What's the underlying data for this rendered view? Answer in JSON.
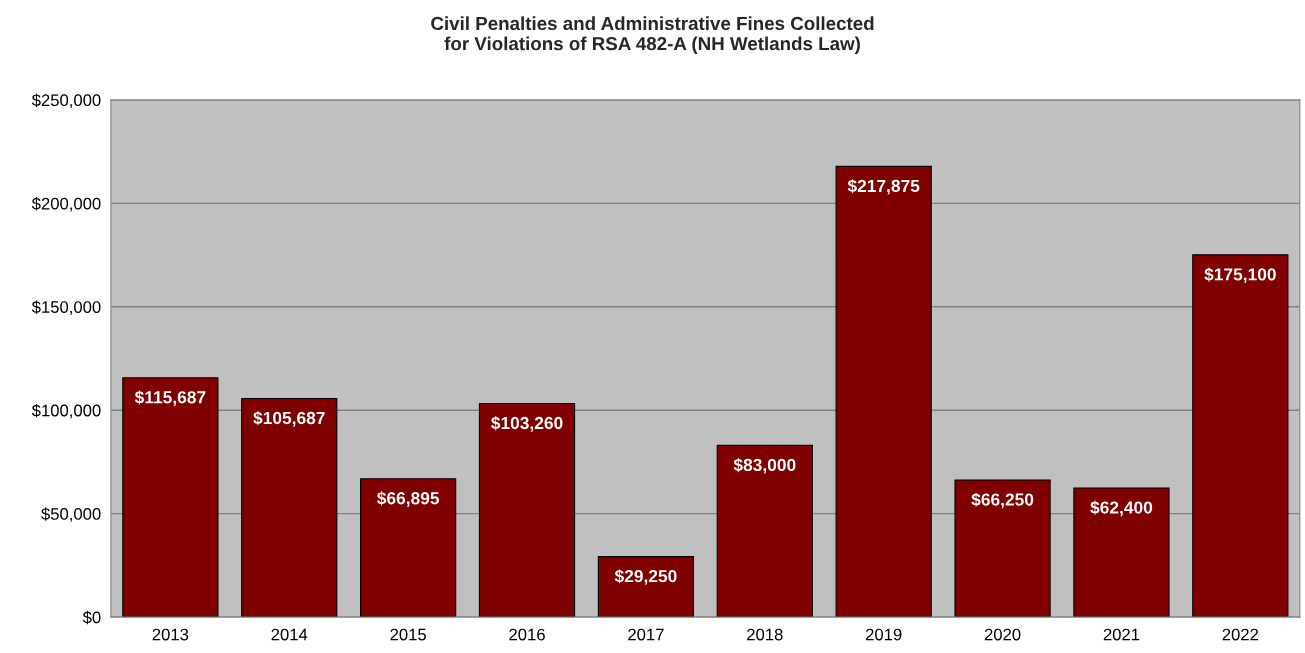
{
  "chart_data": {
    "type": "bar",
    "title": "Civil Penalties and Administrative Fines Collected\nfor Violations of RSA 482-A (NH Wetlands Law)",
    "categories": [
      "2013",
      "2014",
      "2015",
      "2016",
      "2017",
      "2018",
      "2019",
      "2020",
      "2021",
      "2022"
    ],
    "values": [
      115687,
      105687,
      66895,
      103260,
      29250,
      83000,
      217875,
      66250,
      62400,
      175100
    ],
    "value_labels": [
      "$115,687",
      "$105,687",
      "$66,895",
      "$103,260",
      "$29,250",
      "$83,000",
      "$217,875",
      "$66,250",
      "$62,400",
      "$175,100"
    ],
    "color": "#800000",
    "ylim": [
      0,
      250000
    ],
    "yticks": [
      {
        "value": 0,
        "label": "$0"
      },
      {
        "value": 50000,
        "label": "$50,000"
      },
      {
        "value": 100000,
        "label": "$100,000"
      },
      {
        "value": 150000,
        "label": "$150,000"
      },
      {
        "value": 200000,
        "label": "$200,000"
      },
      {
        "value": 250000,
        "label": "$250,000"
      }
    ],
    "grid": "y",
    "legend": false
  }
}
